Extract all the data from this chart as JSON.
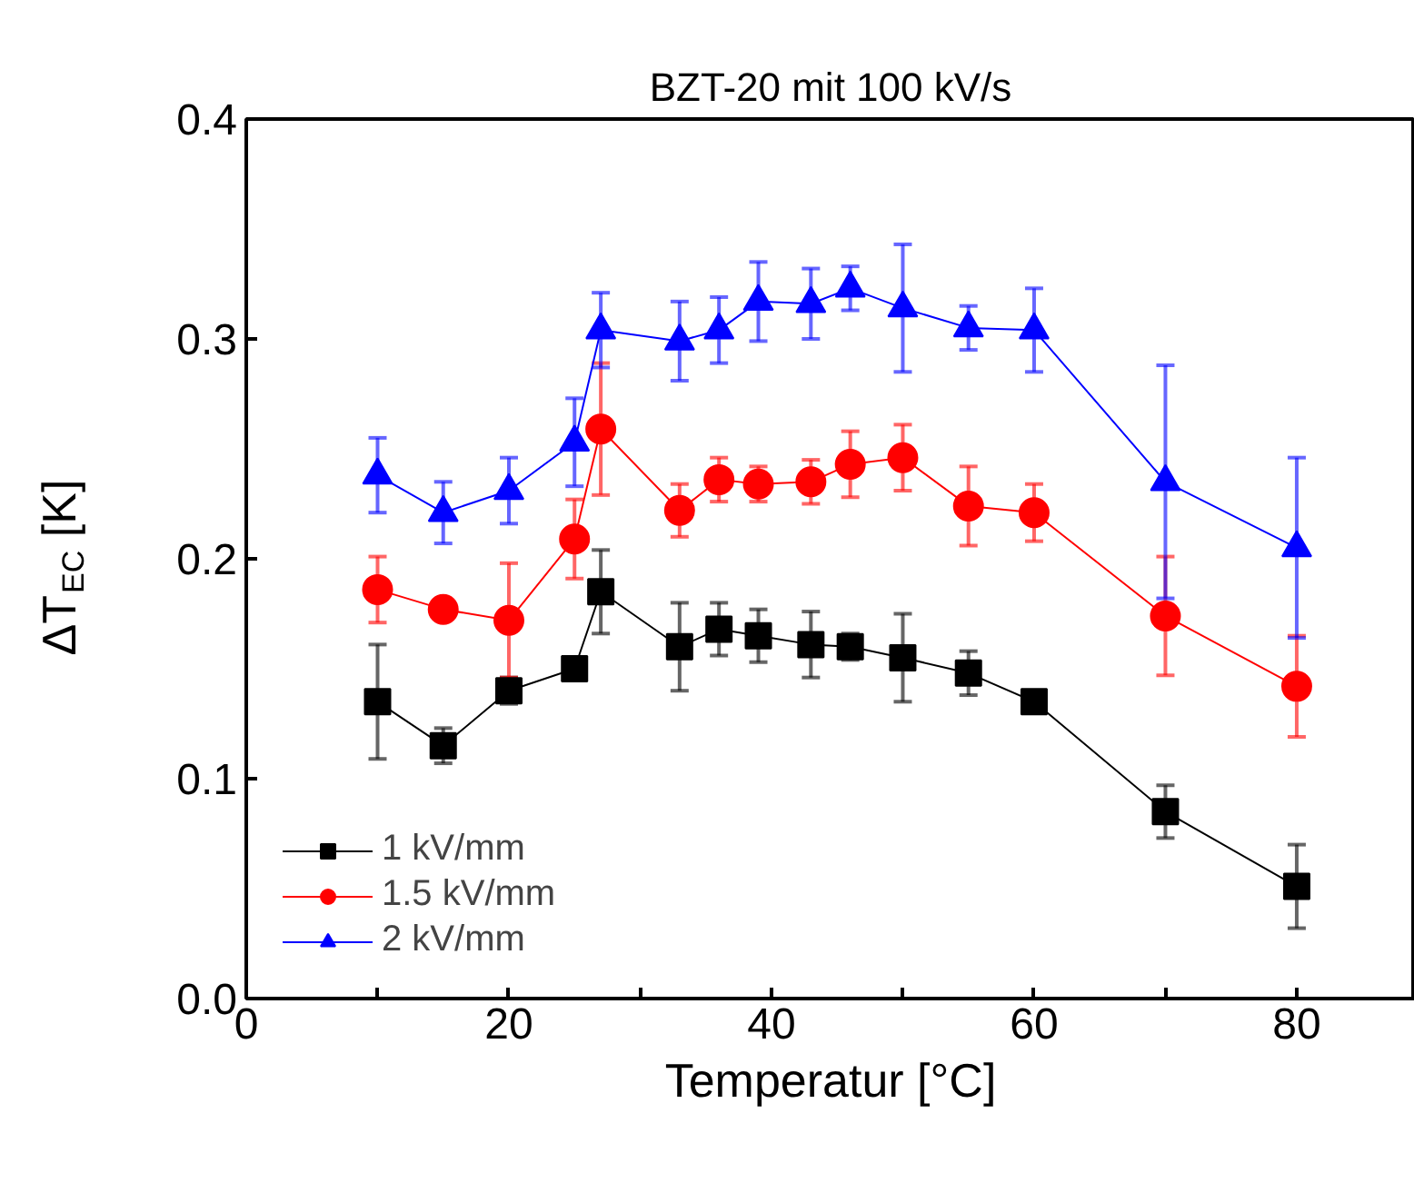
{
  "chart_data": {
    "type": "line",
    "title": "BZT-20 mit 100 kV/s",
    "xlabel": "Temperatur [°C]",
    "ylabel": "ΔT$_{EC}$ [K]",
    "x": [
      10,
      15,
      20,
      25,
      27,
      33,
      36,
      39,
      43,
      46,
      50,
      55,
      60,
      70,
      80
    ],
    "xlim": [
      0,
      89
    ],
    "ylim": [
      0.0,
      0.4
    ],
    "xticks": [
      0,
      {
        "value": 10,
        "label": null
      },
      20,
      {
        "value": 30,
        "label": null
      },
      40,
      {
        "value": 50,
        "label": null
      },
      60,
      {
        "value": 70,
        "label": null
      },
      80
    ],
    "yticks": [
      {
        "value": 0.0,
        "label": "0.0"
      },
      0.1,
      0.2,
      0.3,
      0.4
    ],
    "grid": false,
    "legend": "bottom left",
    "line_style": "solid",
    "series": [
      {
        "name": "1 kV/mm",
        "color": "#000000",
        "marker": "square",
        "values": [
          0.135,
          0.115,
          0.14,
          0.15,
          0.185,
          0.16,
          0.168,
          0.165,
          0.161,
          0.16,
          0.155,
          0.148,
          0.135,
          0.085,
          0.051
        ],
        "errors": [
          0.026,
          0.008,
          0.006,
          null,
          0.019,
          0.02,
          0.012,
          0.012,
          0.015,
          0.006,
          0.02,
          0.01,
          0.004,
          0.012,
          0.019
        ]
      },
      {
        "name": "1.5 kV/mm",
        "color": "#ff0000",
        "marker": "circle",
        "values": [
          0.186,
          0.177,
          0.172,
          0.209,
          0.259,
          0.222,
          0.236,
          0.234,
          0.235,
          0.243,
          0.246,
          0.224,
          0.221,
          0.174,
          0.142
        ],
        "errors": [
          0.015,
          null,
          0.026,
          0.018,
          0.03,
          0.012,
          0.01,
          0.008,
          0.01,
          0.015,
          0.015,
          0.018,
          0.013,
          0.027,
          0.023
        ]
      },
      {
        "name": "2 kV/mm",
        "color": "#0000ff",
        "marker": "triangle",
        "values": [
          0.238,
          0.221,
          0.231,
          0.253,
          0.304,
          0.299,
          0.304,
          0.317,
          0.316,
          0.323,
          0.314,
          0.305,
          0.304,
          0.235,
          0.205
        ],
        "errors": [
          0.017,
          0.014,
          0.015,
          0.02,
          0.017,
          0.018,
          0.015,
          0.018,
          0.016,
          0.01,
          0.029,
          0.01,
          0.019,
          0.053,
          0.041
        ]
      }
    ]
  }
}
